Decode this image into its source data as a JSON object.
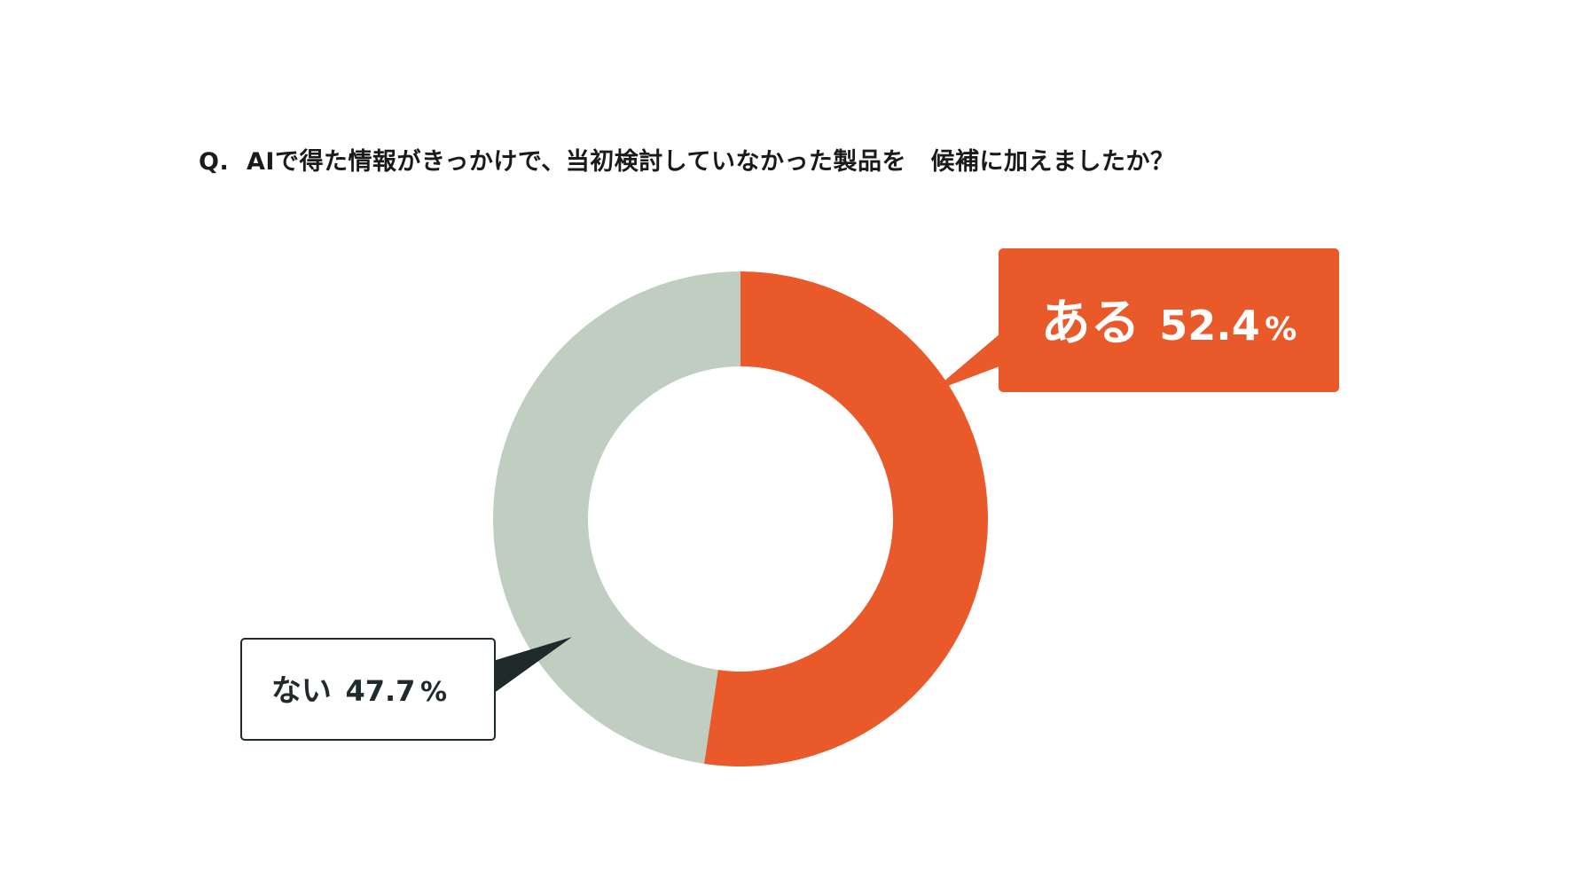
{
  "question": "Q.  AIで得た情報がきっかけで、当初検討していなかった製品を　候補に加えましたか？",
  "colors": {
    "yes": "#e9592a",
    "no": "#bfcec1",
    "no_border": "#1f2a2a",
    "no_text": "#1f2a2a",
    "yes_text": "#ffffff"
  },
  "chart_data": {
    "type": "pie",
    "donut": true,
    "title": "Q.  AIで得た情報がきっかけで、当初検討していなかった製品を　候補に加えましたか？",
    "categories": [
      "ある",
      "ない"
    ],
    "values": [
      52.4,
      47.7
    ],
    "unit": "%",
    "labels": [
      {
        "name": "ある",
        "value_text": "52.4",
        "unit": "%"
      },
      {
        "name": "ない",
        "value_text": "47.7",
        "unit": "%"
      }
    ],
    "start_angle": "12 o'clock",
    "direction": "clockwise"
  }
}
